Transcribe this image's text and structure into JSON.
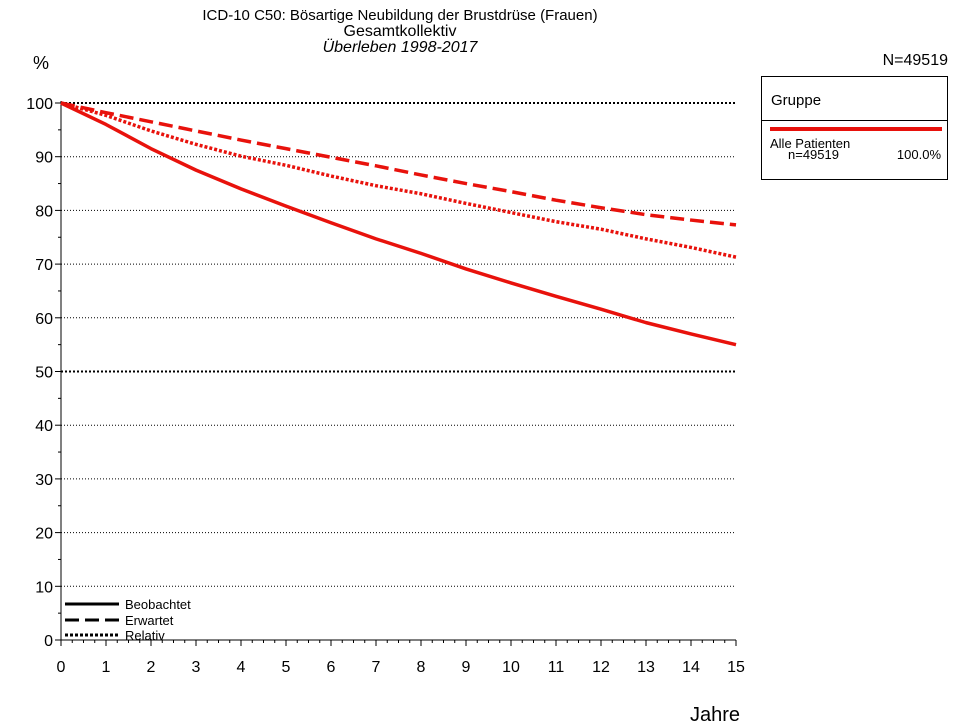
{
  "chart_data": {
    "type": "line",
    "title": "ICD-10 C50: Bösartige Neubildung der Brustdrüse (Frauen)",
    "subtitle": "Gesamtkollektiv",
    "subtitle2": "Überleben 1998-2017",
    "ylabel": "%",
    "xlabel": "Jahre",
    "n_label": "N=49519",
    "xlim": [
      0,
      15
    ],
    "ylim": [
      0,
      100
    ],
    "x_ticks": [
      0,
      1,
      2,
      3,
      4,
      5,
      6,
      7,
      8,
      9,
      10,
      11,
      12,
      13,
      14,
      15
    ],
    "y_ticks": [
      0,
      10,
      20,
      30,
      40,
      50,
      60,
      70,
      80,
      90,
      100
    ],
    "grid": "horizontal dotted",
    "color": "#e8120c",
    "x": [
      0,
      1,
      2,
      3,
      4,
      5,
      6,
      7,
      8,
      9,
      10,
      11,
      12,
      13,
      14,
      15
    ],
    "series": [
      {
        "name": "Beobachtet",
        "style": "solid",
        "values": [
          100,
          96,
          91.5,
          87.5,
          84,
          80.8,
          77.7,
          74.7,
          72,
          69.1,
          66.5,
          64,
          61.6,
          59.1,
          57,
          55
        ]
      },
      {
        "name": "Erwartet",
        "style": "dashed",
        "values": [
          100,
          98.2,
          96.5,
          94.8,
          93.1,
          91.5,
          89.9,
          88.3,
          86.6,
          85,
          83.5,
          81.9,
          80.5,
          79.2,
          78.2,
          77.3
        ]
      },
      {
        "name": "Relativ",
        "style": "dotted",
        "values": [
          100,
          97.7,
          94.8,
          92.3,
          90.1,
          88.4,
          86.4,
          84.6,
          83.1,
          81.3,
          79.6,
          77.9,
          76.5,
          74.7,
          73.1,
          71.3
        ]
      }
    ],
    "legend": {
      "title": "Gruppe",
      "group_name": "Alle Patienten",
      "group_n": "n=49519",
      "group_pct": "100.0%"
    }
  }
}
